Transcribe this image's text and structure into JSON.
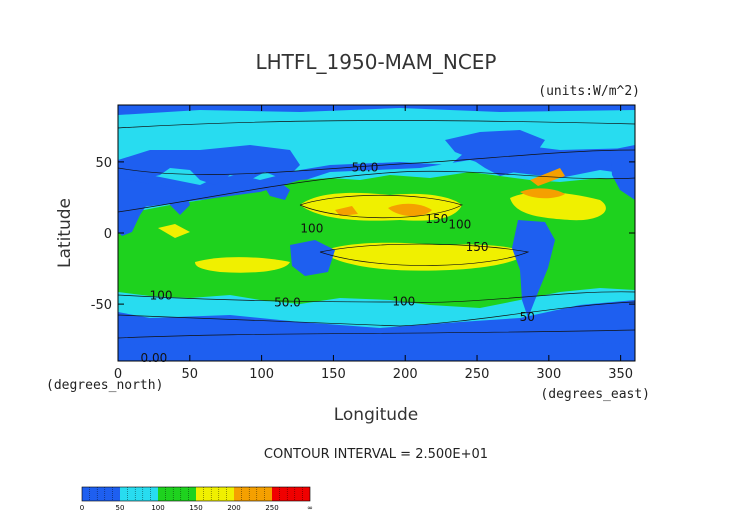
{
  "chart_data": {
    "type": "heatmap",
    "title": "LHTFL_1950-MAM_NCEP",
    "units": "(units:W/m^2)",
    "xlabel": "Longitude",
    "ylabel": "Latitude",
    "xunit": "(degrees_east)",
    "yunit": "(degrees_north)",
    "xlim": [
      0,
      360
    ],
    "ylim": [
      -90,
      90
    ],
    "xticks": [
      0,
      50,
      100,
      150,
      200,
      250,
      300,
      350
    ],
    "yticks": [
      -50,
      0,
      50
    ],
    "contour_interval": "CONTOUR INTERVAL = 2.500E+01",
    "levels": [
      {
        "value": 0,
        "color": "#1e5ff0"
      },
      {
        "value": 50,
        "color": "#28dcf0"
      },
      {
        "value": 100,
        "color": "#1ed21e"
      },
      {
        "value": 150,
        "color": "#f0f000"
      },
      {
        "value": 200,
        "color": "#f5a000"
      },
      {
        "value": 250,
        "color": "#f00000"
      }
    ],
    "colorbar_labels": [
      "0",
      "50",
      "100",
      "150",
      "200",
      "250",
      "∞"
    ],
    "contour_labels": [
      {
        "text": "50.0",
        "x": 172,
        "y": 46
      },
      {
        "text": "150",
        "x": 222,
        "y": 10
      },
      {
        "text": "100",
        "x": 238,
        "y": 6
      },
      {
        "text": "150",
        "x": 250,
        "y": -10
      },
      {
        "text": "100",
        "x": 135,
        "y": 3
      },
      {
        "text": "100",
        "x": 30,
        "y": -44
      },
      {
        "text": "50.0",
        "x": 118,
        "y": -49
      },
      {
        "text": "100",
        "x": 199,
        "y": -48
      },
      {
        "text": "50",
        "x": 285,
        "y": -59
      },
      {
        "text": "0.00",
        "x": 25,
        "y": -88
      }
    ]
  }
}
